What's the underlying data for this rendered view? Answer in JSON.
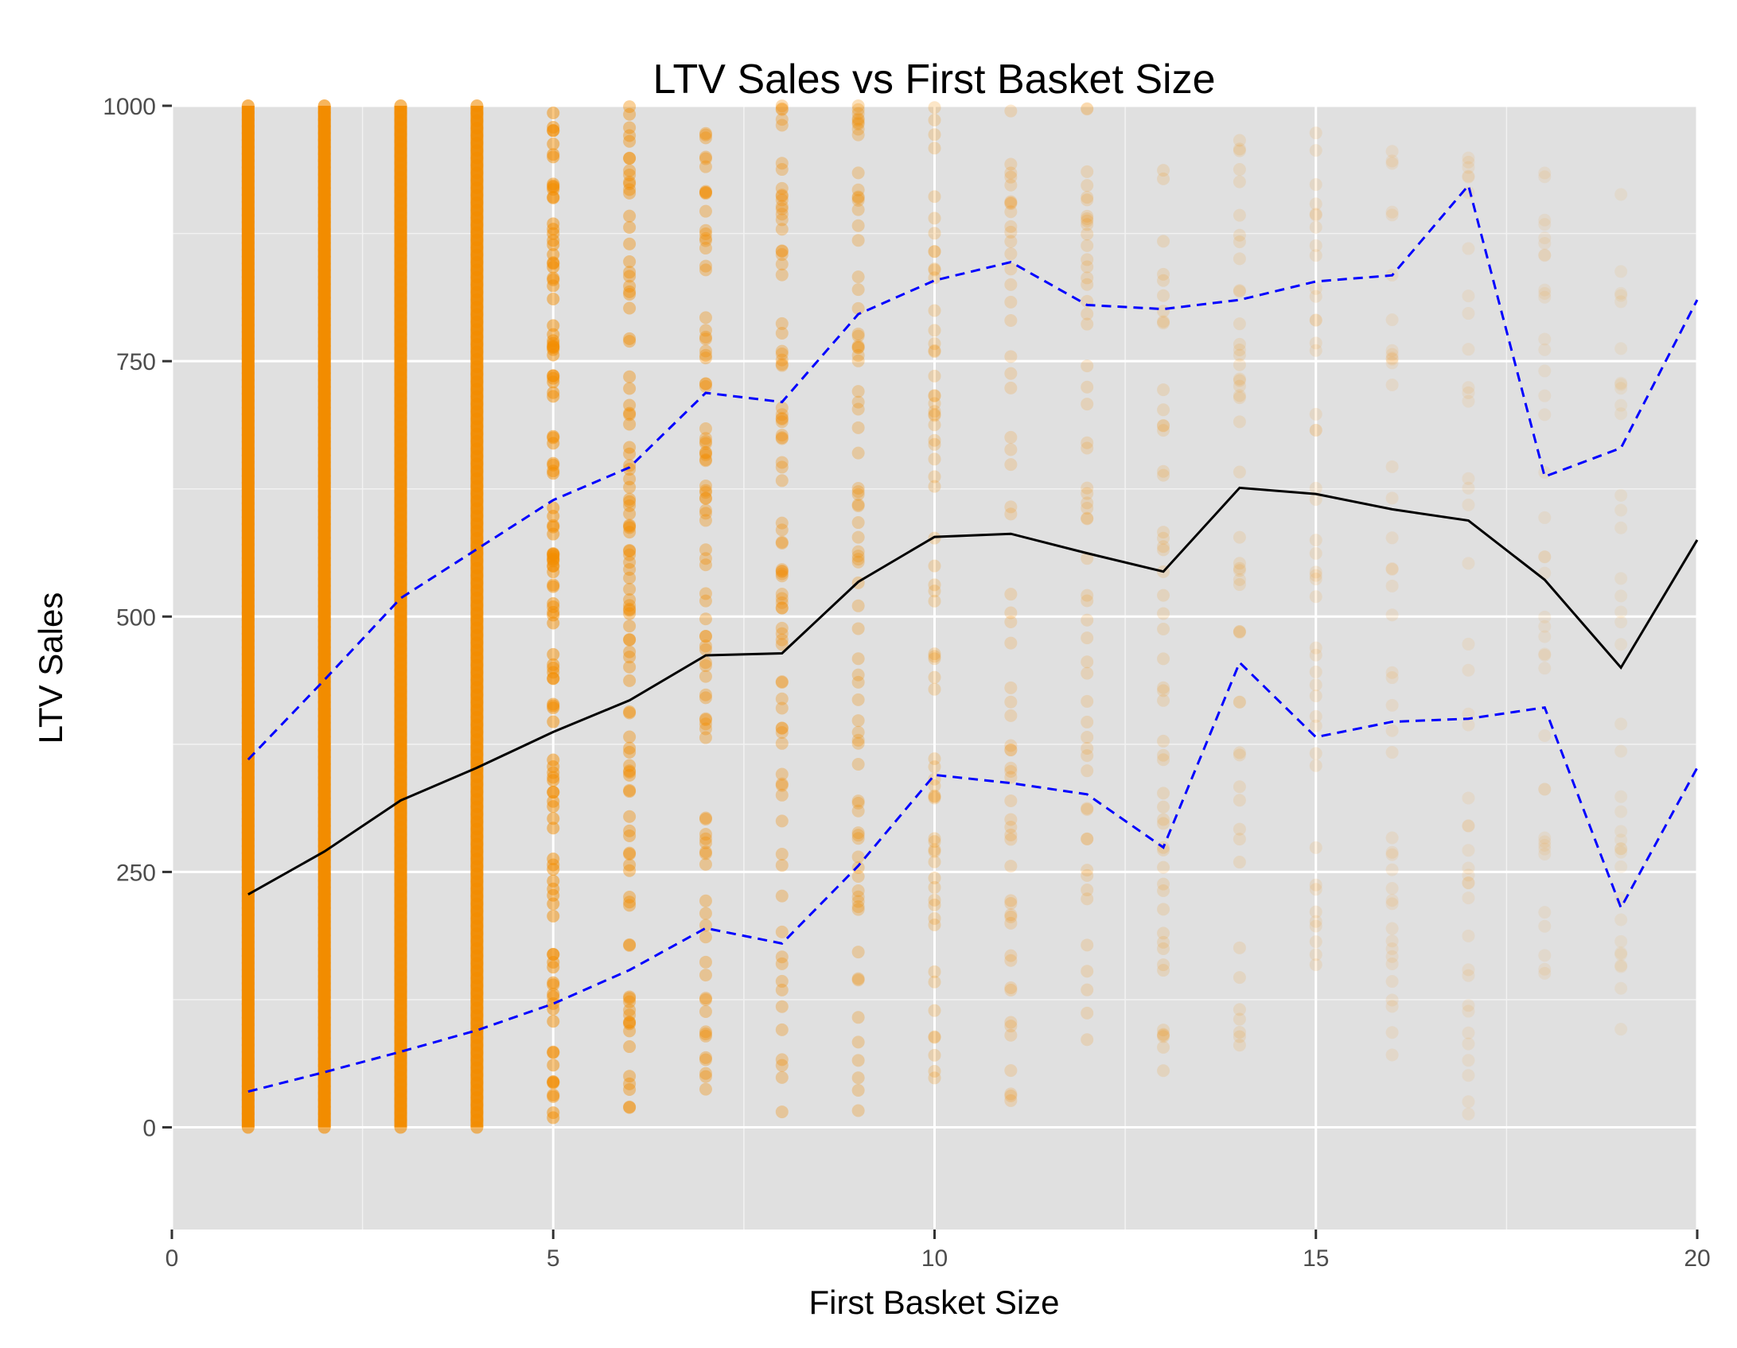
{
  "chart_data": {
    "type": "scatter",
    "title": "LTV Sales vs First Basket Size",
    "xlabel": "First Basket Size",
    "ylabel": "LTV Sales",
    "xlim": [
      0,
      20
    ],
    "ylim": [
      -100,
      1000
    ],
    "x_ticks": [
      0,
      5,
      10,
      15,
      20
    ],
    "y_ticks": [
      0,
      250,
      500,
      750,
      1000
    ],
    "x_tick_labels": [
      "0",
      "5",
      "10",
      "15",
      "20"
    ],
    "y_tick_labels": [
      "0",
      "250",
      "500",
      "750",
      "1000"
    ],
    "grid": true,
    "panel_background": "#e0e0e0",
    "point_color": "#f28c00",
    "scatter_columns": [
      {
        "x": 1,
        "min": 0,
        "max": 1000,
        "opacity": 1.0
      },
      {
        "x": 2,
        "min": 0,
        "max": 1000,
        "opacity": 1.0
      },
      {
        "x": 3,
        "min": 0,
        "max": 1000,
        "opacity": 0.95
      },
      {
        "x": 4,
        "min": 0,
        "max": 1000,
        "opacity": 0.9
      },
      {
        "x": 5,
        "min": 0,
        "max": 1000,
        "opacity": 0.75
      },
      {
        "x": 6,
        "min": 10,
        "max": 1000,
        "opacity": 0.6
      },
      {
        "x": 7,
        "min": 15,
        "max": 1000,
        "opacity": 0.5
      },
      {
        "x": 8,
        "min": 10,
        "max": 1000,
        "opacity": 0.45
      },
      {
        "x": 9,
        "min": 15,
        "max": 1000,
        "opacity": 0.4
      },
      {
        "x": 10,
        "min": 40,
        "max": 1000,
        "opacity": 0.3
      },
      {
        "x": 11,
        "min": 10,
        "max": 1000,
        "opacity": 0.25
      },
      {
        "x": 12,
        "min": 60,
        "max": 1000,
        "opacity": 0.22
      },
      {
        "x": 13,
        "min": 25,
        "max": 960,
        "opacity": 0.18
      },
      {
        "x": 14,
        "min": 70,
        "max": 980,
        "opacity": 0.15
      },
      {
        "x": 15,
        "min": 130,
        "max": 980,
        "opacity": 0.12
      },
      {
        "x": 16,
        "min": 60,
        "max": 960,
        "opacity": 0.1
      },
      {
        "x": 17,
        "min": 5,
        "max": 960,
        "opacity": 0.09
      },
      {
        "x": 18,
        "min": 120,
        "max": 940,
        "opacity": 0.08
      },
      {
        "x": 19,
        "min": 80,
        "max": 930,
        "opacity": 0.07
      }
    ],
    "series": [
      {
        "role": "mean",
        "color": "#000000",
        "dash": "solid",
        "x": [
          1,
          2,
          3,
          4,
          5,
          6,
          7,
          8,
          9,
          10,
          11,
          12,
          13,
          14,
          15,
          16,
          17,
          18,
          19,
          20
        ],
        "y": [
          228,
          270,
          320,
          352,
          387,
          418,
          462,
          464,
          534,
          578,
          581,
          562,
          544,
          626,
          620,
          605,
          594,
          536,
          450,
          575
        ]
      },
      {
        "role": "upper",
        "color": "#0000ff",
        "dash": "dashed",
        "x": [
          1,
          2,
          3,
          4,
          5,
          6,
          7,
          8,
          9,
          10,
          11,
          12,
          13,
          14,
          15,
          16,
          17,
          18,
          19,
          20
        ],
        "y": [
          360,
          438,
          518,
          566,
          614,
          646,
          719,
          710,
          796,
          829,
          847,
          805,
          801,
          810,
          828,
          834,
          922,
          637,
          665,
          810
        ]
      },
      {
        "role": "lower",
        "color": "#0000ff",
        "dash": "dashed",
        "x": [
          1,
          2,
          3,
          4,
          5,
          6,
          7,
          8,
          9,
          10,
          11,
          12,
          13,
          14,
          15,
          16,
          17,
          18,
          19,
          20
        ],
        "y": [
          35,
          54,
          74,
          95,
          121,
          154,
          195,
          180,
          256,
          345,
          337,
          326,
          274,
          455,
          382,
          397,
          400,
          411,
          215,
          352
        ]
      }
    ]
  }
}
